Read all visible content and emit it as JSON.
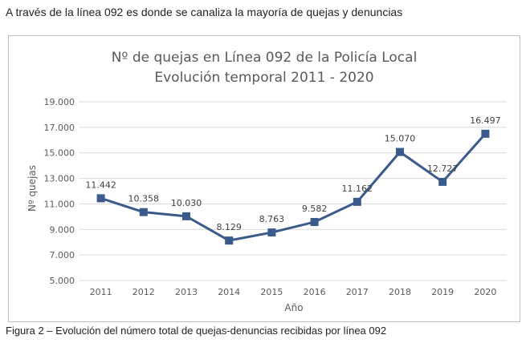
{
  "heading": "A través de la línea 092 es donde se canaliza la mayoría de quejas y denuncias",
  "caption": "Figura 2 – Evolución del número total de quejas-denuncias recibidas por línea 092",
  "chart_data": {
    "type": "line",
    "title": [
      "Nº de quejas en Línea 092 de la Policía Local",
      "Evolución temporal 2011 - 2020"
    ],
    "xlabel": "Año",
    "ylabel": "Nº quejas",
    "categories": [
      "2011",
      "2012",
      "2013",
      "2014",
      "2015",
      "2016",
      "2017",
      "2018",
      "2019",
      "2020"
    ],
    "series": [
      {
        "values": [
          11442,
          10358,
          10030,
          8129,
          8763,
          9582,
          11162,
          15070,
          12727,
          16497
        ],
        "labels": [
          "11.442",
          "10.358",
          "10.030",
          "8.129",
          "8.763",
          "9.582",
          "11.162",
          "15.070",
          "12.727",
          "16.497"
        ],
        "color": "#3a5a8c",
        "marker": "square"
      }
    ],
    "ylim": [
      5000,
      19000
    ],
    "yticks": [
      5000,
      7000,
      9000,
      11000,
      13000,
      15000,
      17000,
      19000
    ],
    "ytick_labels": [
      "5.000",
      "7.000",
      "9.000",
      "11.000",
      "13.000",
      "15.000",
      "17.000",
      "19.000"
    ],
    "grid": true,
    "legend": "none"
  }
}
